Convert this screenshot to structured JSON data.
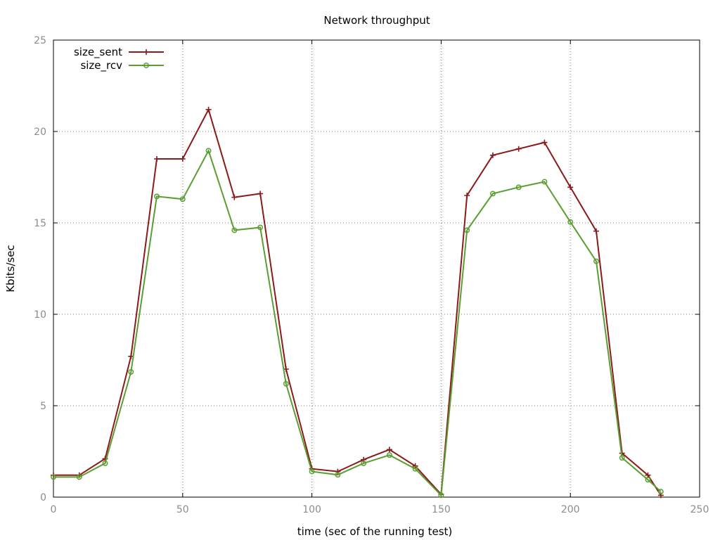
{
  "chart_data": {
    "type": "line",
    "title": "Network throughput",
    "xlabel": "time (sec of the running test)",
    "ylabel": "Kbits/sec",
    "xlim": [
      0,
      250
    ],
    "ylim": [
      0,
      25
    ],
    "xticks": [
      0,
      50,
      100,
      150,
      200,
      250
    ],
    "yticks": [
      0,
      5,
      10,
      15,
      20,
      25
    ],
    "grid": true,
    "legend_position": "top-left",
    "x": [
      0,
      10,
      20,
      30,
      40,
      50,
      60,
      70,
      80,
      90,
      100,
      110,
      120,
      130,
      140,
      150,
      160,
      170,
      180,
      190,
      200,
      210,
      220,
      230,
      235
    ],
    "series": [
      {
        "name": "size_sent",
        "color": "#8b1a1a",
        "marker": "plus",
        "values": [
          1.2,
          1.2,
          2.1,
          7.7,
          18.5,
          18.5,
          21.2,
          16.4,
          16.6,
          7.0,
          1.55,
          1.4,
          2.05,
          2.6,
          1.7,
          0.15,
          16.5,
          18.7,
          19.05,
          19.4,
          16.95,
          14.55,
          2.4,
          1.2,
          0.1
        ]
      },
      {
        "name": "size_rcv",
        "color": "#5a9e32",
        "marker": "circle",
        "values": [
          1.1,
          1.1,
          1.85,
          6.85,
          16.45,
          16.3,
          18.95,
          14.6,
          14.75,
          6.2,
          1.4,
          1.22,
          1.85,
          2.3,
          1.55,
          0.1,
          14.6,
          16.6,
          16.95,
          17.25,
          15.05,
          12.9,
          2.15,
          0.95,
          0.3
        ]
      }
    ]
  }
}
